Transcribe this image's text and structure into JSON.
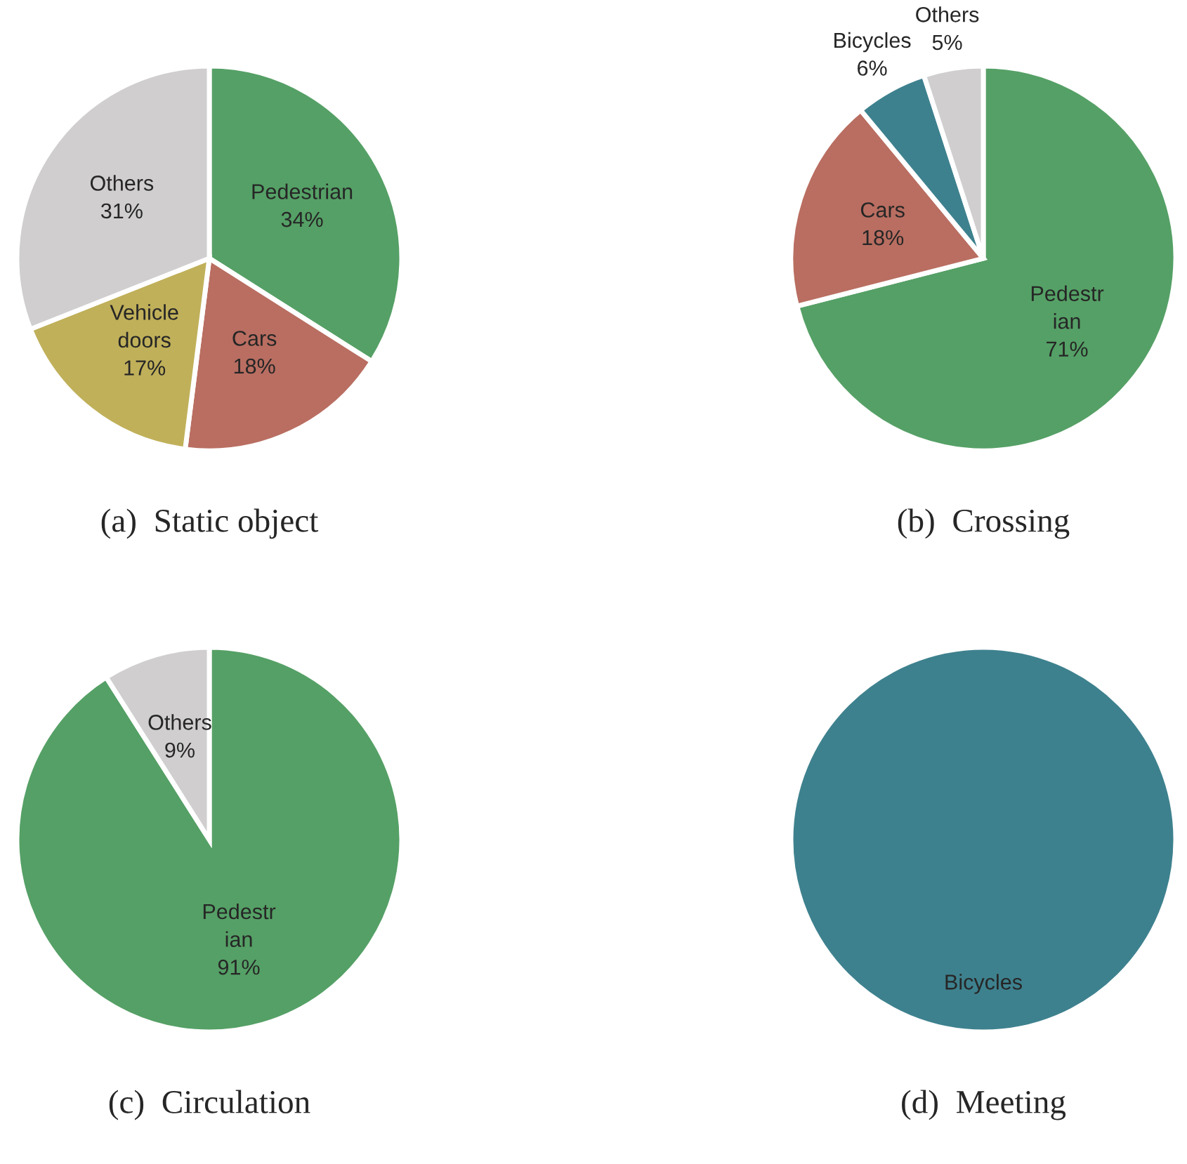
{
  "chart_data": [
    {
      "type": "pie",
      "title": "(a)  Static object",
      "categories": [
        "Pedestrian",
        "Cars",
        "Vehicle\ndoors",
        "Others"
      ],
      "values": [
        34,
        18,
        17,
        31
      ],
      "value_labels": [
        "34%",
        "18%",
        "17%",
        "31%"
      ],
      "colors": [
        "#55a066",
        "#b96e61",
        "#c0b05a",
        "#d0cece"
      ]
    },
    {
      "type": "pie",
      "title": "(b)  Crossing",
      "categories": [
        "Pedestr\nian",
        "Cars",
        "Bicycles",
        "Others"
      ],
      "values": [
        71,
        18,
        6,
        5
      ],
      "value_labels": [
        "71%",
        "18%",
        "6%",
        "5%"
      ],
      "colors": [
        "#55a066",
        "#b96e61",
        "#3e818e",
        "#d0cece"
      ]
    },
    {
      "type": "pie",
      "title": "(c)  Circulation",
      "categories": [
        "Pedestr\nian",
        "Others"
      ],
      "values": [
        91,
        9
      ],
      "value_labels": [
        "91%",
        "9%"
      ],
      "colors": [
        "#55a066",
        "#d0cece"
      ]
    },
    {
      "type": "pie",
      "title": "(d)  Meeting",
      "categories": [
        "Bicycles"
      ],
      "values": [
        100
      ],
      "colors": [
        "#3e818e"
      ]
    }
  ]
}
